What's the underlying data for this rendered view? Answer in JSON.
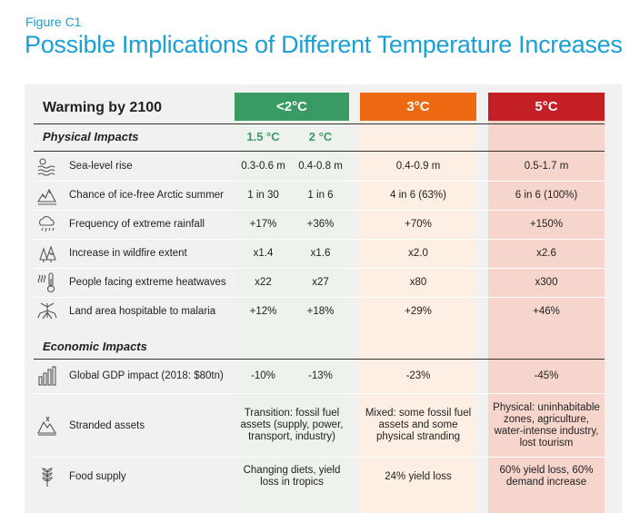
{
  "figure": {
    "label": "Figure C1",
    "title": "Possible Implications of Different Temperature Increases"
  },
  "table": {
    "warming_label": "Warming by 2100",
    "columns": {
      "lt2": "<2°C",
      "c3": "3°C",
      "c5": "5°C",
      "sub15": "1.5 °C",
      "sub2": "2 °C"
    },
    "sections": {
      "physical": "Physical Impacts",
      "economic": "Economic Impacts"
    },
    "physical_rows": [
      {
        "icon": "sea-level-icon",
        "label": "Sea-level rise",
        "v15": "0.3-0.6 m",
        "v2": "0.4-0.8 m",
        "v3": "0.4-0.9 m",
        "v5": "0.5-1.7 m"
      },
      {
        "icon": "arctic-ice-icon",
        "label": "Chance of ice-free Arctic summer",
        "v15": "1 in 30",
        "v2": "1 in 6",
        "v3": "4 in 6 (63%)",
        "v5": "6 in 6 (100%)"
      },
      {
        "icon": "rain-cloud-icon",
        "label": "Frequency of extreme rainfall",
        "v15": "+17%",
        "v2": "+36%",
        "v3": "+70%",
        "v5": "+150%"
      },
      {
        "icon": "wildfire-icon",
        "label": "Increase in wildfire extent",
        "v15": "x1.4",
        "v2": "x1.6",
        "v3": "x2.0",
        "v5": "x2.6"
      },
      {
        "icon": "heatwave-thermometer-icon",
        "label": "People facing extreme heatwaves",
        "v15": "x22",
        "v2": "x27",
        "v3": "x80",
        "v5": "x300"
      },
      {
        "icon": "mosquito-icon",
        "label": "Land area hospitable to malaria",
        "v15": "+12%",
        "v2": "+18%",
        "v3": "+29%",
        "v5": "+46%"
      }
    ],
    "economic_rows": [
      {
        "icon": "gdp-bar-chart-icon",
        "label": "Global GDP impact (2018: $80tn)",
        "v15": "-10%",
        "v2": "-13%",
        "v3": "-23%",
        "v5": "-45%"
      },
      {
        "icon": "stranded-assets-icon",
        "label": "Stranded assets",
        "vlt2": "Transition: fossil fuel assets (supply, power, transport, industry)",
        "v3": "Mixed: some fossil fuel assets and some physical stranding",
        "v5": "Physical: uninhabitable zones, agriculture, water-intense industry, lost tourism"
      },
      {
        "icon": "wheat-food-icon",
        "label": "Food supply",
        "vlt2": "Changing diets, yield loss in tropics",
        "v3": "24% yield loss",
        "v5": "60% yield loss, 60% demand increase"
      }
    ],
    "colors": {
      "title_blue": "#1aa0d8",
      "green": "#3a9a64",
      "orange": "#ee6a12",
      "red": "#c51f26"
    }
  }
}
